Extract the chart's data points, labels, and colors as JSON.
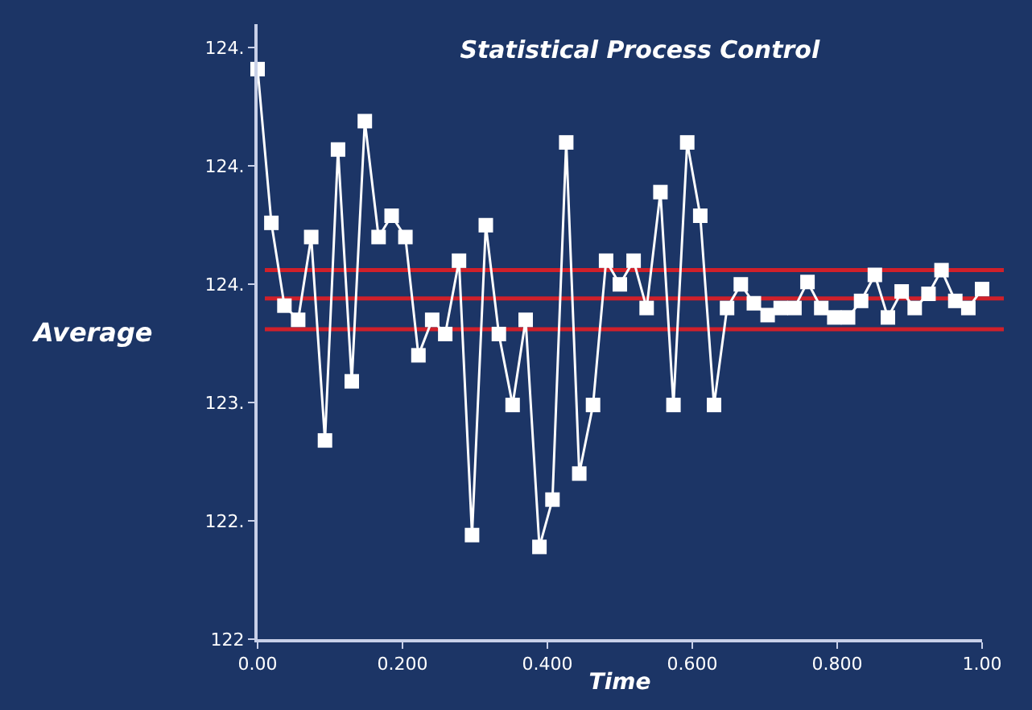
{
  "chart_data": {
    "type": "line",
    "title": "Statistical Process Control",
    "xlabel": "Time",
    "ylabel": "Average",
    "x": [
      0,
      0.019,
      0.037,
      0.056,
      0.074,
      0.093,
      0.111,
      0.13,
      0.148,
      0.167,
      0.185,
      0.204,
      0.222,
      0.241,
      0.259,
      0.278,
      0.296,
      0.315,
      0.333,
      0.352,
      0.37,
      0.389,
      0.407,
      0.426,
      0.444,
      0.463,
      0.481,
      0.5,
      0.519,
      0.537,
      0.556,
      0.574,
      0.593,
      0.611,
      0.63,
      0.648,
      0.667,
      0.685,
      0.704,
      0.722,
      0.741,
      0.759,
      0.778,
      0.796,
      0.815,
      0.833,
      0.852,
      0.87,
      0.889,
      0.907,
      0.926,
      0.944,
      0.963,
      0.981,
      1.0
    ],
    "series": [
      {
        "color": "#ffffff",
        "values": [
          124.41,
          123.76,
          123.41,
          123.35,
          123.7,
          122.84,
          124.07,
          123.09,
          124.19,
          123.7,
          123.79,
          123.7,
          123.2,
          123.35,
          123.29,
          123.6,
          122.44,
          123.75,
          123.29,
          122.99,
          123.35,
          122.39,
          122.59,
          124.1,
          122.7,
          122.99,
          123.6,
          123.5,
          123.6,
          123.4,
          123.89,
          122.99,
          124.1,
          123.79,
          122.99,
          123.4,
          123.5,
          123.42,
          123.37,
          123.4,
          123.4,
          123.51,
          123.4,
          123.36,
          123.36,
          123.43,
          123.54,
          123.36,
          123.47,
          123.4,
          123.46,
          123.56,
          123.43,
          123.4,
          123.48
        ]
      }
    ],
    "marker": "square",
    "line_style": "solid",
    "grid": false,
    "xlim": [
      0,
      1
    ],
    "xticks": [
      {
        "value": 0,
        "label": "0.00"
      },
      {
        "value": 0.2,
        "label": "0.200"
      },
      {
        "value": 0.4,
        "label": "0.400"
      },
      {
        "value": 0.6,
        "label": "0.600"
      },
      {
        "value": 0.8,
        "label": "0.800"
      },
      {
        "value": 1,
        "label": "1.00"
      }
    ],
    "ylim": [
      122,
      124.6
    ],
    "yticks": [
      {
        "value": 122,
        "label": "122"
      },
      {
        "value": 122.5,
        "label": "122."
      },
      {
        "value": 123,
        "label": "123."
      },
      {
        "value": 123.5,
        "label": "124."
      },
      {
        "value": 124,
        "label": "124."
      },
      {
        "value": 124.5,
        "label": "124."
      }
    ],
    "ref_lines": [
      {
        "axis": "y",
        "value": 123.56,
        "color": "#d0202a"
      },
      {
        "axis": "y",
        "value": 123.44,
        "color": "#d0202a"
      },
      {
        "axis": "y",
        "value": 123.31,
        "color": "#d0202a"
      }
    ]
  }
}
